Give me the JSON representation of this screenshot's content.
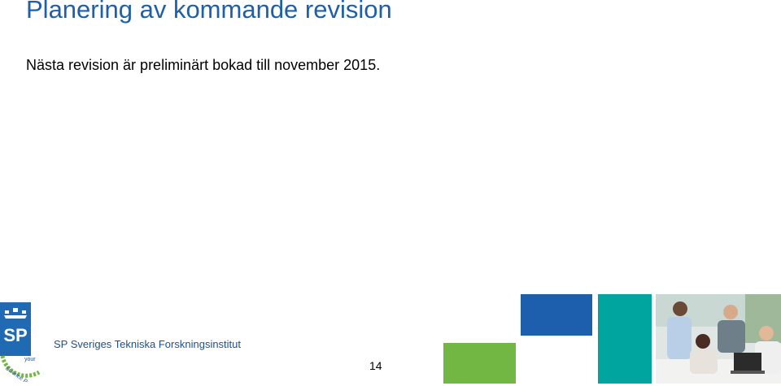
{
  "slide": {
    "title": "Planering av kommande revision",
    "body": "Nästa revision är preliminärt bokad till november 2015.",
    "page_number": "14"
  },
  "footer": {
    "logo_letters": "SP",
    "logo_tagline": "your Science Partner",
    "org_name": "SP Sveriges Tekniska Forskningsinstitut"
  },
  "colors": {
    "title": "#1f5fa8",
    "logo_blue": "#1f6ab3",
    "blue_block": "#1d5fad",
    "teal_block": "#00a5a0",
    "green_block": "#72b743"
  }
}
